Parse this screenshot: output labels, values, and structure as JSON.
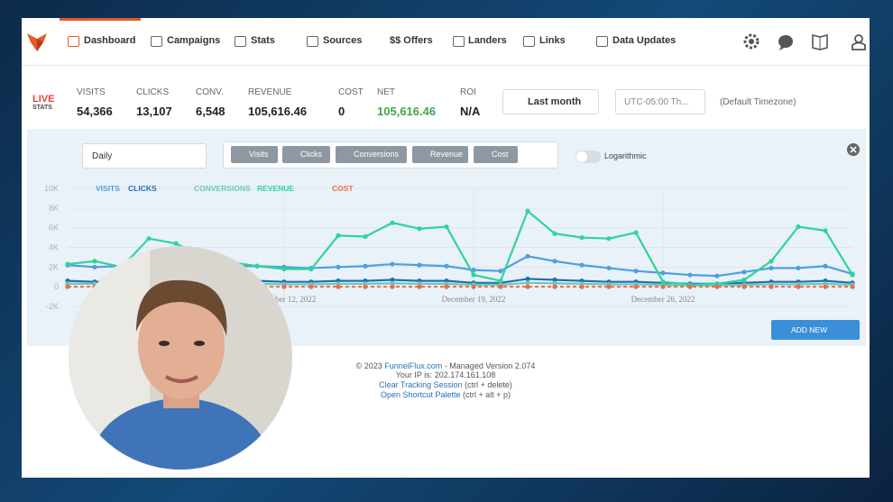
{
  "nav": {
    "items": [
      "Dashboard",
      "Campaigns",
      "Stats",
      "Sources",
      "$$ Offers",
      "Landers",
      "Links",
      "Data Updates"
    ]
  },
  "stats": {
    "live": "LIVE",
    "live_sub": "STATS",
    "items": [
      {
        "label": "VISITS",
        "value": "54,366"
      },
      {
        "label": "CLICKS",
        "value": "13,107"
      },
      {
        "label": "CONV.",
        "value": "6,548"
      },
      {
        "label": "REVENUE",
        "value": "105,616.46"
      },
      {
        "label": "COST",
        "value": "0"
      },
      {
        "label": "NET",
        "value": "105,616.46"
      },
      {
        "label": "ROI",
        "value": "N/A"
      }
    ]
  },
  "filters": {
    "date_range": "Last month",
    "timezone": "UTC-05:00 Th...",
    "timezone_note": "(Default Timezone)",
    "granularity": "Daily",
    "metrics": [
      "Visits",
      "Clicks",
      "Conversions",
      "Revenue",
      "Cost"
    ],
    "log_label": "Logarithmic"
  },
  "chart_data": {
    "type": "line",
    "logarithmic": false,
    "grid": true,
    "x": [
      4,
      5,
      6,
      7,
      8,
      9,
      10,
      11,
      12,
      13,
      14,
      15,
      16,
      17,
      18,
      19,
      20,
      21,
      22,
      23,
      24,
      25,
      26,
      27,
      28,
      29,
      30,
      31,
      32,
      33
    ],
    "xlim": [
      4,
      33
    ],
    "xticks": [
      {
        "value": 12,
        "label": "December 12, 2022"
      },
      {
        "value": 19,
        "label": "December 19, 2022"
      },
      {
        "value": 26,
        "label": "December 26, 2022"
      }
    ],
    "ylim": [
      -2000,
      10000
    ],
    "yticks": [
      {
        "value": 10000,
        "label": "10K"
      },
      {
        "value": 8000,
        "label": "8K"
      },
      {
        "value": 6000,
        "label": "6K"
      },
      {
        "value": 4000,
        "label": "4K"
      },
      {
        "value": 2000,
        "label": "2K"
      },
      0,
      {
        "value": -2000,
        "label": "-2K"
      }
    ],
    "series": [
      {
        "name": "VISITS",
        "color": "#4f9fe0",
        "values": [
          2200,
          2000,
          2100,
          2200,
          2200,
          2200,
          2100,
          2100,
          2000,
          1900,
          2000,
          2100,
          2300,
          2200,
          2100,
          1700,
          1600,
          3100,
          2600,
          2200,
          1900,
          1600,
          1400,
          1200,
          1100,
          1500,
          1900,
          1900,
          2100,
          1300
        ]
      },
      {
        "name": "CLICKS",
        "color": "#1f6fb5",
        "values": [
          600,
          500,
          500,
          600,
          600,
          500,
          500,
          600,
          500,
          500,
          600,
          600,
          700,
          600,
          600,
          400,
          400,
          800,
          700,
          600,
          500,
          500,
          400,
          300,
          300,
          400,
          500,
          500,
          600,
          400
        ]
      },
      {
        "name": "CONVERSIONS",
        "color": "#6cc9b4",
        "values": [
          300,
          300,
          250,
          300,
          300,
          250,
          250,
          300,
          250,
          250,
          300,
          300,
          350,
          300,
          300,
          200,
          200,
          400,
          350,
          300,
          250,
          250,
          200,
          150,
          150,
          200,
          250,
          250,
          300,
          200
        ]
      },
      {
        "name": "REVENUE",
        "color": "#2fd49a",
        "values": [
          2300,
          2600,
          2000,
          4900,
          4400,
          3000,
          2500,
          2100,
          1800,
          1800,
          5200,
          5100,
          6500,
          5900,
          6100,
          1200,
          600,
          7700,
          5400,
          5000,
          4900,
          5500,
          500,
          200,
          300,
          700,
          2600,
          6100,
          5700,
          1200
        ]
      },
      {
        "name": "COST",
        "color": "#f06a4a",
        "dashed": true,
        "values": [
          0,
          0,
          0,
          0,
          0,
          0,
          0,
          0,
          0,
          0,
          0,
          0,
          0,
          0,
          0,
          0,
          0,
          0,
          0,
          0,
          0,
          0,
          0,
          0,
          0,
          0,
          0,
          0,
          0,
          0
        ]
      }
    ]
  },
  "add_widget": "ADD NEW WIDGET",
  "footer": {
    "copy_prefix": "© 2023 ",
    "site": "FunnelFlux.com",
    "copy_suffix": " - Managed Version 2.074",
    "ip": "Your IP is: 202.174.161.108",
    "clear_link": "Clear Tracking Session",
    "clear_keys": " (ctrl + delete)",
    "palette_link": "Open Shortcut Palette",
    "palette_keys": " (ctrl + alt + p)"
  }
}
